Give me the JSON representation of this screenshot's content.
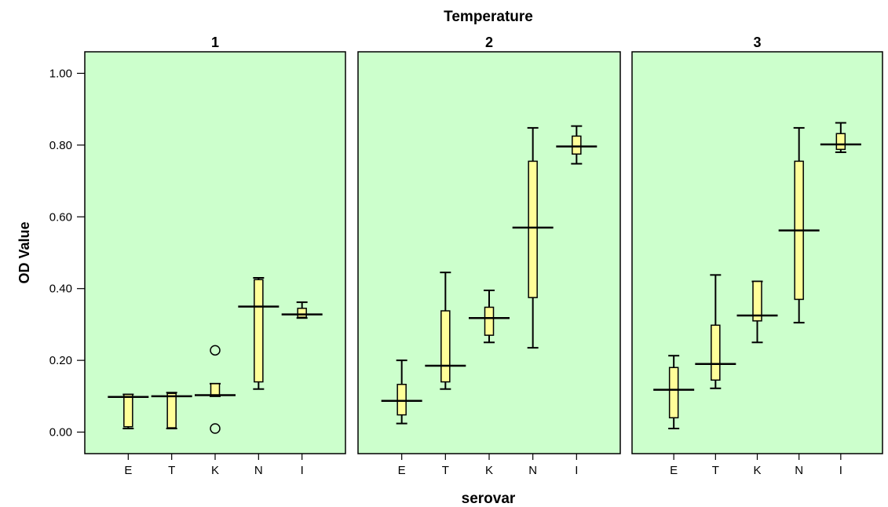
{
  "chart_data": {
    "type": "boxplot",
    "title": "Temperature",
    "xlabel": "serovar",
    "ylabel": "OD Value",
    "ylim": [
      -0.06,
      1.06
    ],
    "yticks": [
      "0.00",
      "0.20",
      "0.40",
      "0.60",
      "0.80",
      "1.00"
    ],
    "ytick_values": [
      0,
      0.2,
      0.4,
      0.6,
      0.8,
      1.0
    ],
    "categories": [
      "E",
      "T",
      "K",
      "N",
      "I"
    ],
    "grid": false,
    "colors": {
      "panel_bg": "#ccffcc",
      "box_fill": "#ffff99",
      "stroke": "#000000"
    },
    "panels": [
      {
        "label": "1",
        "boxes": [
          {
            "category": "E",
            "whisker_low": 0.01,
            "q1": 0.015,
            "median": 0.098,
            "q3": 0.105,
            "whisker_high": 0.105,
            "outliers": []
          },
          {
            "category": "T",
            "whisker_low": 0.01,
            "q1": 0.012,
            "median": 0.1,
            "q3": 0.108,
            "whisker_high": 0.11,
            "outliers": []
          },
          {
            "category": "K",
            "whisker_low": 0.1,
            "q1": 0.1,
            "median": 0.103,
            "q3": 0.135,
            "whisker_high": 0.135,
            "outliers": [
              0.228,
              0.01
            ]
          },
          {
            "category": "N",
            "whisker_low": 0.12,
            "q1": 0.14,
            "median": 0.35,
            "q3": 0.425,
            "whisker_high": 0.43,
            "outliers": []
          },
          {
            "category": "I",
            "whisker_low": 0.318,
            "q1": 0.32,
            "median": 0.328,
            "q3": 0.345,
            "whisker_high": 0.362,
            "outliers": []
          }
        ]
      },
      {
        "label": "2",
        "boxes": [
          {
            "category": "E",
            "whisker_low": 0.024,
            "q1": 0.048,
            "median": 0.087,
            "q3": 0.133,
            "whisker_high": 0.2,
            "outliers": []
          },
          {
            "category": "T",
            "whisker_low": 0.12,
            "q1": 0.14,
            "median": 0.185,
            "q3": 0.338,
            "whisker_high": 0.445,
            "outliers": []
          },
          {
            "category": "K",
            "whisker_low": 0.25,
            "q1": 0.27,
            "median": 0.318,
            "q3": 0.348,
            "whisker_high": 0.395,
            "outliers": []
          },
          {
            "category": "N",
            "whisker_low": 0.235,
            "q1": 0.375,
            "median": 0.57,
            "q3": 0.755,
            "whisker_high": 0.848,
            "outliers": []
          },
          {
            "category": "I",
            "whisker_low": 0.748,
            "q1": 0.775,
            "median": 0.796,
            "q3": 0.825,
            "whisker_high": 0.853,
            "outliers": []
          }
        ]
      },
      {
        "label": "3",
        "boxes": [
          {
            "category": "E",
            "whisker_low": 0.01,
            "q1": 0.04,
            "median": 0.118,
            "q3": 0.18,
            "whisker_high": 0.213,
            "outliers": []
          },
          {
            "category": "T",
            "whisker_low": 0.122,
            "q1": 0.145,
            "median": 0.19,
            "q3": 0.298,
            "whisker_high": 0.438,
            "outliers": []
          },
          {
            "category": "K",
            "whisker_low": 0.25,
            "q1": 0.31,
            "median": 0.325,
            "q3": 0.42,
            "whisker_high": 0.42,
            "outliers": []
          },
          {
            "category": "N",
            "whisker_low": 0.305,
            "q1": 0.37,
            "median": 0.562,
            "q3": 0.755,
            "whisker_high": 0.848,
            "outliers": []
          },
          {
            "category": "I",
            "whisker_low": 0.78,
            "q1": 0.788,
            "median": 0.802,
            "q3": 0.832,
            "whisker_high": 0.862,
            "outliers": []
          }
        ]
      }
    ]
  }
}
